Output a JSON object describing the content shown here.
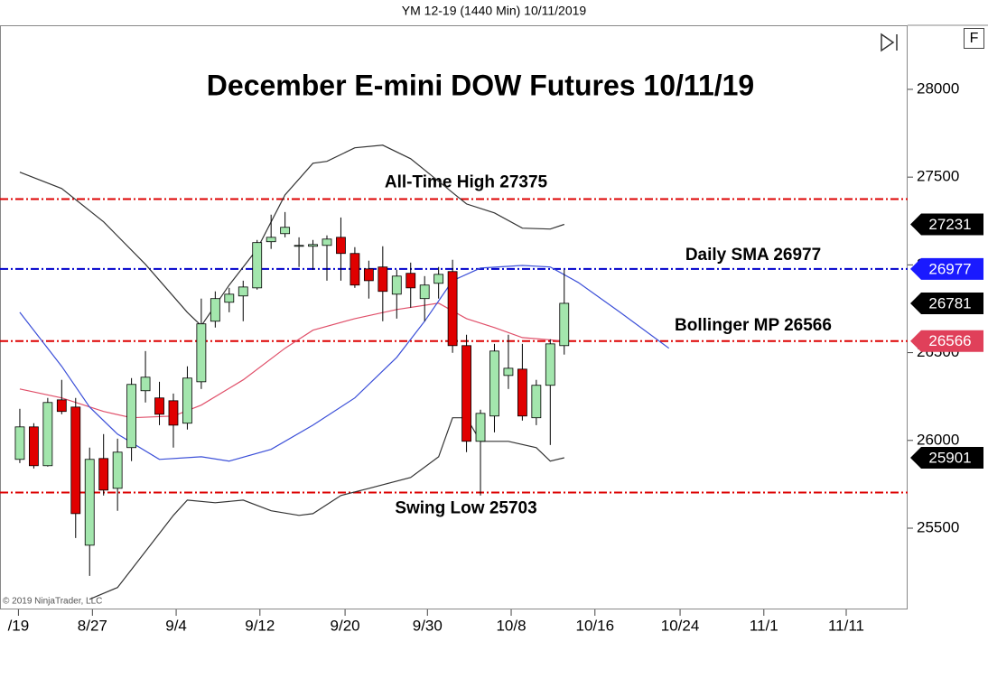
{
  "chart_data": {
    "type": "candlestick",
    "header": "YM 12-19 (1440 Min)  10/11/2019",
    "title": "December E-mini DOW Futures 10/11/19",
    "copyright": "© 2019 NinjaTrader, LLC",
    "panel_label": "F",
    "xlim": [
      -1.42,
      63.6
    ],
    "xticks": [
      {
        "value": -0.1,
        "label": "/19"
      },
      {
        "value": 5.2,
        "label": "8/27"
      },
      {
        "value": 11.2,
        "label": "9/4"
      },
      {
        "value": 17.2,
        "label": "9/12"
      },
      {
        "value": 23.3,
        "label": "9/20"
      },
      {
        "value": 29.2,
        "label": "9/30"
      },
      {
        "value": 35.2,
        "label": "10/8"
      },
      {
        "value": 41.2,
        "label": "10/16"
      },
      {
        "value": 47.3,
        "label": "10/24"
      },
      {
        "value": 53.3,
        "label": "11/1"
      },
      {
        "value": 59.2,
        "label": "11/11"
      }
    ],
    "ylim": [
      25037,
      28365
    ],
    "yticks": [
      25500,
      26000,
      26500,
      27000,
      27500,
      28000
    ],
    "up_color": "#a3e6ad",
    "down_color": "#e00000",
    "open": [
      25892,
      26077,
      25856,
      26231,
      26190,
      25403,
      25897,
      25727,
      25959,
      26283,
      26242,
      26226,
      26098,
      26334,
      26679,
      26787,
      26823,
      26869,
      27132,
      27178,
      27106,
      27106,
      27111,
      27157,
      27065,
      26977,
      26988,
      26833,
      26952,
      26808,
      26895,
      26962,
      26540,
      25995,
      26139,
      26370,
      26406,
      26129,
      26314,
      26540
    ],
    "high": [
      26180,
      26098,
      26242,
      26345,
      26242,
      25959,
      26036,
      26010,
      26355,
      26509,
      26334,
      26267,
      26422,
      26808,
      26849,
      26869,
      26910,
      27142,
      27286,
      27301,
      27157,
      27142,
      27168,
      27270,
      27101,
      27024,
      27106,
      26972,
      27013,
      26936,
      26988,
      27029,
      26602,
      26175,
      26550,
      26602,
      26550,
      26345,
      26576,
      26972
    ],
    "low": [
      25871,
      25840,
      25851,
      26149,
      25444,
      25228,
      25686,
      25599,
      25882,
      26216,
      26087,
      25959,
      26062,
      26293,
      26643,
      26730,
      26679,
      26859,
      27091,
      27157,
      26988,
      26972,
      26910,
      26910,
      26869,
      26808,
      26679,
      26694,
      26756,
      26679,
      26808,
      26499,
      25933,
      25686,
      26046,
      26293,
      26113,
      26087,
      25974,
      26489
    ],
    "close": [
      26077,
      25856,
      26216,
      26165,
      25583,
      25892,
      25717,
      25933,
      26319,
      26360,
      26149,
      26087,
      26355,
      26664,
      26808,
      26833,
      26874,
      27127,
      27157,
      27214,
      27111,
      27116,
      27147,
      27065,
      26885,
      26910,
      26849,
      26936,
      26869,
      26885,
      26946,
      26540,
      25995,
      26154,
      26509,
      26411,
      26139,
      26314,
      26550,
      26781
    ],
    "series": [
      {
        "color": "#333333",
        "x": [
          0,
          3,
          6,
          9,
          12,
          13,
          15,
          17,
          19,
          21,
          22,
          24,
          26,
          28,
          30,
          32,
          34,
          36,
          38,
          39
        ],
        "values": [
          27528,
          27435,
          27245,
          27003,
          26730,
          26653,
          26885,
          27090,
          27399,
          27579,
          27590,
          27667,
          27682,
          27605,
          27476,
          27347,
          27296,
          27209,
          27204,
          27231
        ]
      },
      {
        "color": "#333333",
        "x": [
          5,
          7,
          9,
          11,
          12,
          14,
          16,
          18,
          20,
          21,
          23,
          25,
          28,
          30,
          31,
          32,
          33,
          35,
          37,
          38,
          39
        ],
        "values": [
          25095,
          25162,
          25367,
          25573,
          25660,
          25645,
          25660,
          25599,
          25573,
          25583,
          25686,
          25727,
          25789,
          25907,
          26129,
          26129,
          25995,
          25995,
          25959,
          25882,
          25901
        ]
      },
      {
        "color": "#e0506a",
        "x": [
          0,
          3,
          6,
          8,
          11,
          13,
          16,
          19,
          21,
          24,
          27,
          30,
          32,
          34,
          36,
          39
        ],
        "values": [
          26293,
          26242,
          26165,
          26129,
          26139,
          26201,
          26345,
          26525,
          26628,
          26694,
          26746,
          26782,
          26694,
          26643,
          26586,
          26566
        ]
      },
      {
        "color": "#3b4fd8",
        "x": [
          0,
          3,
          5,
          7,
          10,
          13,
          15,
          18,
          21,
          24,
          27,
          29,
          31,
          33,
          36,
          38,
          40,
          43,
          46.5
        ],
        "values": [
          26730,
          26422,
          26190,
          26036,
          25892,
          25907,
          25882,
          25949,
          26087,
          26242,
          26473,
          26679,
          26910,
          26982,
          26997,
          26988,
          26900,
          26730,
          26525
        ]
      }
    ],
    "hlines": [
      {
        "value": 27375,
        "color": "#dd0000",
        "label": "All-Time High 27375"
      },
      {
        "value": 26977,
        "color": "#0000cc",
        "label": "Daily SMA 26977"
      },
      {
        "value": 26566,
        "color": "#dd0000",
        "label": "Bollinger MP 26566"
      },
      {
        "value": 25703,
        "color": "#dd0000",
        "label": "Swing Low 25703"
      }
    ],
    "price_tags": [
      {
        "value": 27231,
        "color": "#000000"
      },
      {
        "value": 26977,
        "color": "#1a1aff"
      },
      {
        "value": 26781,
        "color": "#000000"
      },
      {
        "value": 26566,
        "color": "#e0405a"
      },
      {
        "value": 25901,
        "color": "#000000"
      }
    ]
  }
}
